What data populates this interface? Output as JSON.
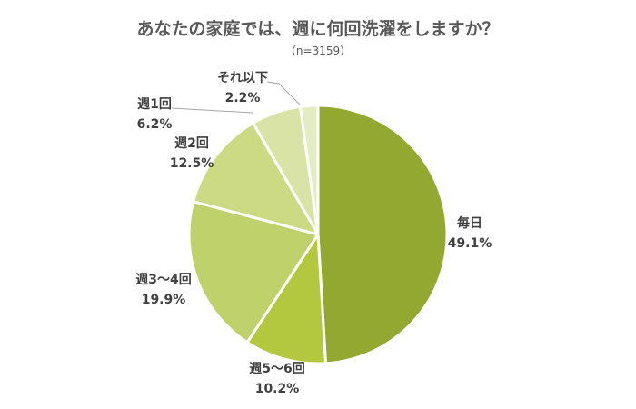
{
  "chart_data": {
    "type": "pie",
    "title": "あなたの家庭では、週に何回洗濯をしますか？",
    "subtitle": "（n=3159）",
    "unit": "%",
    "start_angle_deg": 0,
    "direction": "clockwise",
    "legend": "none",
    "categories": [
      "毎日",
      "週5～6回",
      "週3～4回",
      "週2回",
      "週1回",
      "それ以下"
    ],
    "values": [
      49.1,
      10.2,
      19.9,
      12.5,
      6.2,
      2.2
    ],
    "value_labels": [
      "49.1%",
      "10.2%",
      "19.9%",
      "12.5%",
      "6.2%",
      "2.2%"
    ],
    "colors": [
      "#93A831",
      "#B4C83F",
      "#BFD16A",
      "#CCDA84",
      "#D9E3A6",
      "#E4ECC3"
    ]
  }
}
